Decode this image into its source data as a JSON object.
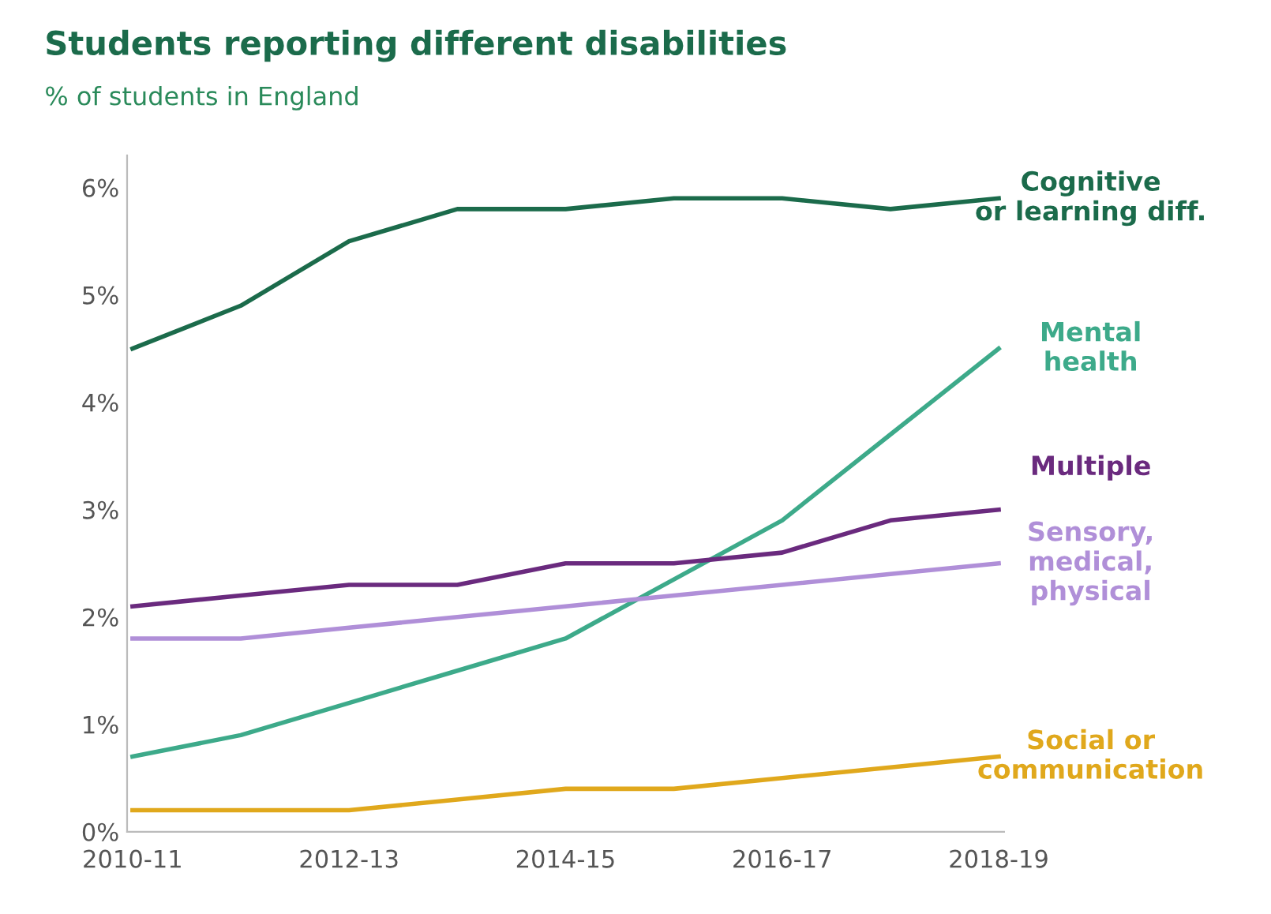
{
  "chart_data": {
    "type": "line",
    "title": "Students reporting different disabilities",
    "subtitle": "% of students in England",
    "categories": [
      "2010-11",
      null,
      "2012-13",
      null,
      "2014-15",
      null,
      "2016-17",
      null,
      "2018-19"
    ],
    "ylim": [
      0,
      6.3
    ],
    "yticks": [
      {
        "value": 0,
        "label": "0%"
      },
      {
        "value": 1,
        "label": "1%"
      },
      {
        "value": 2,
        "label": "2%"
      },
      {
        "value": 3,
        "label": "3%"
      },
      {
        "value": 4,
        "label": "4%"
      },
      {
        "value": 5,
        "label": "5%"
      },
      {
        "value": 6,
        "label": "6%"
      }
    ],
    "grid": false,
    "legend": false,
    "marker": "none",
    "line_style": "solid",
    "series": [
      {
        "name": "Cognitive\nor learning diff.",
        "color": "#1b6b4b",
        "values": [
          4.5,
          4.9,
          5.5,
          5.8,
          5.8,
          5.9,
          5.9,
          5.8,
          5.9
        ]
      },
      {
        "name": "Mental\nhealth",
        "color": "#3daa8a",
        "values": [
          0.7,
          0.9,
          1.2,
          1.5,
          1.8,
          2.35,
          2.9,
          3.7,
          4.5
        ]
      },
      {
        "name": "Multiple",
        "color": "#6a2a7e",
        "values": [
          2.1,
          2.2,
          2.3,
          2.3,
          2.5,
          2.5,
          2.6,
          2.9,
          3.0
        ]
      },
      {
        "name": "Sensory,\nmedical,\nphysical",
        "color": "#b08fd8",
        "values": [
          1.8,
          1.8,
          1.9,
          2.0,
          2.1,
          2.2,
          2.3,
          2.4,
          2.5
        ]
      },
      {
        "name": "Social or\ncommunication",
        "color": "#e0a81c",
        "values": [
          0.2,
          0.2,
          0.2,
          0.3,
          0.4,
          0.4,
          0.5,
          0.6,
          0.7
        ]
      }
    ]
  }
}
